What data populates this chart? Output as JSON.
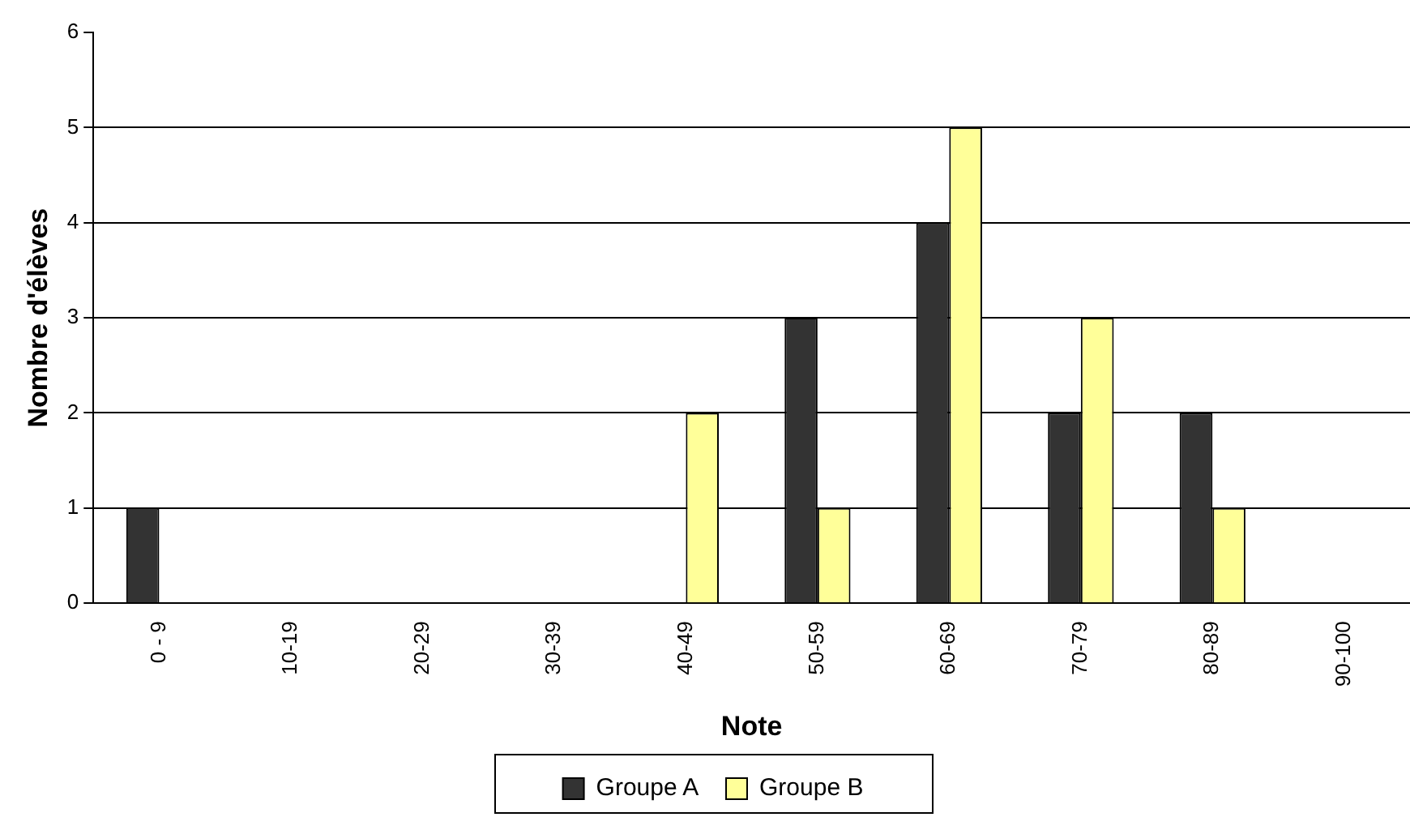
{
  "chart_data": {
    "type": "bar",
    "xlabel": "Note",
    "ylabel": "Nombre d'élèves",
    "categories": [
      "0 - 9",
      "10-19",
      "20-29",
      "30-39",
      "40-49",
      "50-59",
      "60-69",
      "70-79",
      "80-89",
      "90-100"
    ],
    "series": [
      {
        "name": "Groupe A",
        "color": "#333333",
        "values": [
          1,
          0,
          0,
          0,
          0,
          3,
          4,
          2,
          2,
          0
        ]
      },
      {
        "name": "Groupe B",
        "color": "#ffff99",
        "values": [
          0,
          0,
          0,
          0,
          2,
          1,
          5,
          3,
          1,
          0
        ]
      }
    ],
    "ylim": [
      0,
      6
    ],
    "yticks": [
      0,
      1,
      2,
      3,
      4,
      5,
      6
    ],
    "grid": "y",
    "legend": "bottom"
  }
}
